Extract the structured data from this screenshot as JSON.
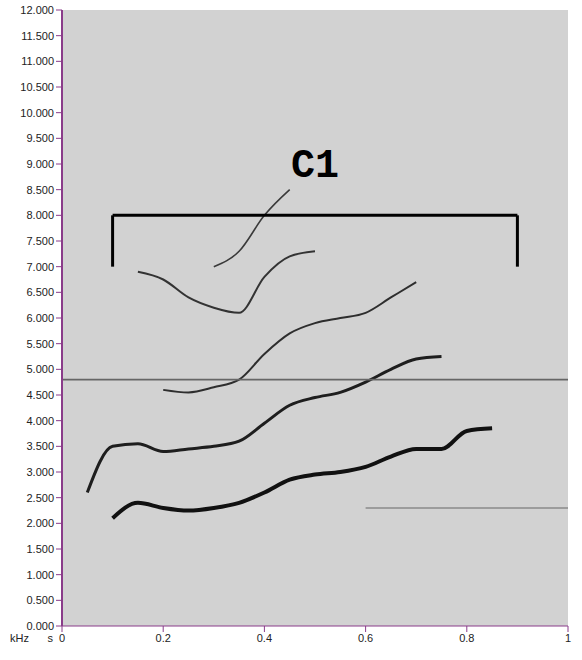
{
  "chart_data": {
    "type": "line",
    "xlabel": "s",
    "ylabel": "kHz",
    "grid": false,
    "xlim": [
      0,
      1
    ],
    "ylim": [
      0,
      12
    ],
    "xticks": [
      0,
      0.2,
      0.4,
      0.6,
      0.8,
      1
    ],
    "yticks": [
      {
        "value": 0,
        "label": "0.000"
      },
      {
        "value": 0.5,
        "label": "0.500"
      },
      {
        "value": 1,
        "label": "1.000"
      },
      {
        "value": 1.5,
        "label": "1.500"
      },
      {
        "value": 2,
        "label": "2.000"
      },
      {
        "value": 2.5,
        "label": "2.500"
      },
      {
        "value": 3,
        "label": "3.000"
      },
      {
        "value": 3.5,
        "label": "3.500"
      },
      {
        "value": 4,
        "label": "4.000"
      },
      {
        "value": 4.5,
        "label": "4.500"
      },
      {
        "value": 5,
        "label": "5.000"
      },
      {
        "value": 5.5,
        "label": "5.500"
      },
      {
        "value": 6,
        "label": "6.000"
      },
      {
        "value": 6.5,
        "label": "6.500"
      },
      {
        "value": 7,
        "label": "7.000"
      },
      {
        "value": 7.5,
        "label": "7.500"
      },
      {
        "value": 8,
        "label": "8.000"
      },
      {
        "value": 8.5,
        "label": "8.500"
      },
      {
        "value": 9,
        "label": "9.000"
      },
      {
        "value": 9.5,
        "label": "9.500"
      },
      {
        "value": 10,
        "label": "10.000"
      },
      {
        "value": 10.5,
        "label": "10.500"
      },
      {
        "value": 11,
        "label": "11.000"
      },
      {
        "value": 11.5,
        "label": "11.500"
      },
      {
        "value": 12,
        "label": "12.000"
      }
    ],
    "x": [
      0,
      0.05,
      0.1,
      0.15,
      0.2,
      0.25,
      0.3,
      0.35,
      0.4,
      0.45,
      0.5,
      0.55,
      0.6,
      0.65,
      0.7,
      0.75,
      0.8,
      0.85,
      0.9,
      0.95,
      1
    ],
    "series": [
      {
        "color": "#111111",
        "values": [
          null,
          null,
          2.1,
          2.4,
          2.3,
          2.25,
          2.3,
          2.4,
          2.6,
          2.85,
          2.95,
          3.0,
          3.1,
          3.3,
          3.45,
          3.45,
          3.8,
          3.85,
          null,
          null,
          null
        ]
      },
      {
        "color": "#1e1e1e",
        "values": [
          null,
          2.6,
          3.5,
          3.55,
          3.4,
          3.45,
          3.5,
          3.6,
          3.95,
          4.3,
          4.45,
          4.55,
          4.75,
          5.0,
          5.2,
          5.25,
          null,
          null,
          null,
          null,
          null
        ]
      },
      {
        "color": "#2e2e2e",
        "values": [
          null,
          null,
          null,
          null,
          4.6,
          4.55,
          4.65,
          4.8,
          5.3,
          5.7,
          5.9,
          6.0,
          6.1,
          6.4,
          6.7,
          null,
          null,
          null,
          null,
          null,
          null
        ]
      },
      {
        "color": "#333333",
        "values": [
          null,
          null,
          null,
          6.9,
          6.75,
          6.4,
          6.2,
          6.1,
          6.8,
          7.2,
          7.3,
          null,
          null,
          null,
          null,
          null,
          null,
          null,
          null,
          null,
          null
        ]
      },
      {
        "color": "#3a3a3a",
        "values": [
          null,
          null,
          null,
          null,
          null,
          null,
          7.0,
          7.3,
          8.0,
          8.5,
          null,
          null,
          null,
          null,
          null,
          null,
          null,
          null,
          null,
          null,
          null
        ]
      },
      {
        "color": "#666666",
        "values": [
          4.8,
          4.8,
          4.8,
          4.8,
          4.8,
          4.8,
          4.8,
          4.8,
          4.8,
          4.8,
          4.8,
          4.8,
          4.8,
          4.8,
          4.8,
          4.8,
          4.8,
          4.8,
          4.8,
          4.8,
          4.8
        ]
      },
      {
        "color": "#8a8a8a",
        "values": [
          null,
          null,
          null,
          null,
          null,
          null,
          null,
          null,
          null,
          null,
          null,
          null,
          2.3,
          2.3,
          2.3,
          2.3,
          2.3,
          2.3,
          2.3,
          2.3,
          2.3
        ]
      }
    ],
    "annotations": [
      {
        "text": "C1",
        "x": [
          0.1,
          0.9
        ],
        "y": [
          7,
          8
        ]
      }
    ]
  }
}
